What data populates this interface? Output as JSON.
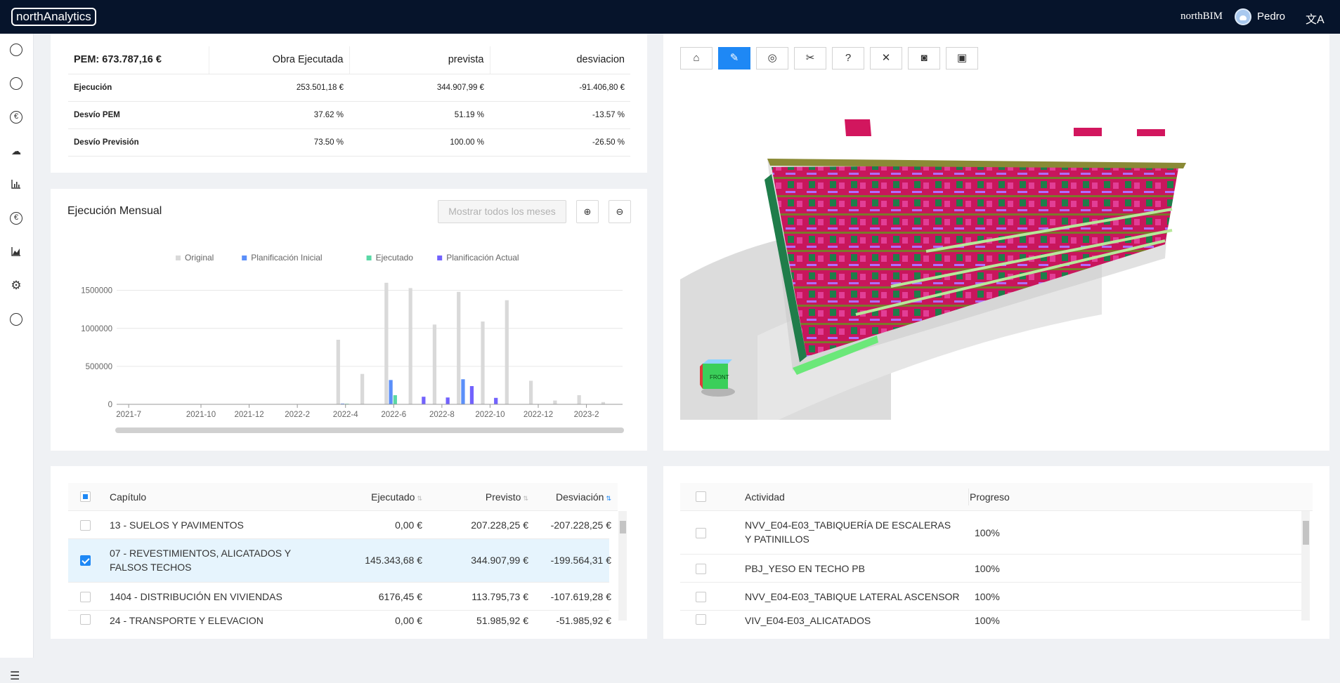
{
  "app": {
    "logo": "northAnalytics",
    "brand": "northBIM",
    "user": "Pedro",
    "lang_icon": "文A"
  },
  "sidebar": {
    "icons": [
      "pie-chart-icon",
      "pie-chart-icon",
      "euro-icon",
      "cloud-icon",
      "bar-chart-icon",
      "euro-icon",
      "area-chart-icon",
      "gear-icon",
      "dashboard-icon"
    ],
    "menu_glyph": "☰"
  },
  "pem": {
    "headers": [
      "PEM: 673.787,16 €",
      "Obra Ejecutada",
      "prevista",
      "desviacion"
    ],
    "rows": [
      {
        "label": "Ejecución",
        "values": [
          "253.501,18 €",
          "344.907,99 €",
          "-91.406,80 €"
        ]
      },
      {
        "label": "Desvío PEM",
        "values": [
          "37.62 %",
          "51.19 %",
          "-13.57 %"
        ]
      },
      {
        "label": "Desvío Previsión",
        "values": [
          "73.50 %",
          "100.00 %",
          "-26.50 %"
        ]
      }
    ]
  },
  "monthly": {
    "title": "Ejecución Mensual",
    "show_all": "Mostrar todos los meses",
    "zoom_in": "⊕",
    "zoom_out": "⊖"
  },
  "chart_data": {
    "type": "bar",
    "categories": [
      "2021-7",
      "2021-8",
      "2021-9",
      "2021-10",
      "2021-11",
      "2021-12",
      "2022-1",
      "2022-2",
      "2022-3",
      "2022-4",
      "2022-5",
      "2022-6",
      "2022-7",
      "2022-8",
      "2022-9",
      "2022-10",
      "2022-11",
      "2022-12",
      "2023-1",
      "2023-2",
      "2023-3"
    ],
    "tick_labels": [
      "2021-7",
      "2021-10",
      "2021-12",
      "2022-2",
      "2022-4",
      "2022-6",
      "2022-8",
      "2022-10",
      "2022-12",
      "2023-2"
    ],
    "series": [
      {
        "name": "Original",
        "color": "#d9d9d9",
        "values": [
          0,
          0,
          0,
          0,
          0,
          0,
          0,
          0,
          0,
          850000,
          400000,
          1600000,
          1530000,
          1050000,
          1480000,
          1090000,
          1370000,
          310000,
          50000,
          120000,
          30000
        ]
      },
      {
        "name": "Planificación Inicial",
        "color": "#5b8ff9",
        "values": [
          0,
          0,
          0,
          0,
          0,
          0,
          0,
          0,
          0,
          10000,
          0,
          320000,
          0,
          0,
          330000,
          0,
          0,
          0,
          0,
          0,
          0
        ]
      },
      {
        "name": "Ejecutado",
        "color": "#5ad8a6",
        "values": [
          0,
          0,
          0,
          0,
          0,
          0,
          0,
          0,
          0,
          8000,
          0,
          120000,
          0,
          0,
          0,
          0,
          0,
          0,
          0,
          0,
          0
        ]
      },
      {
        "name": "Planificación Actual",
        "color": "#7262fd",
        "values": [
          0,
          0,
          0,
          0,
          0,
          0,
          0,
          0,
          0,
          0,
          0,
          0,
          100000,
          90000,
          240000,
          85000,
          0,
          0,
          0,
          0,
          0
        ]
      }
    ],
    "y_ticks": [
      "0",
      "500000",
      "1000000",
      "1500000"
    ],
    "ylim": [
      0,
      1700000
    ],
    "grid": true,
    "legend": "top"
  },
  "viewer": {
    "buttons": [
      {
        "name": "home-icon",
        "glyph": "⌂"
      },
      {
        "name": "select-icon",
        "glyph": "✎"
      },
      {
        "name": "hide-icon",
        "glyph": "◎"
      },
      {
        "name": "scissors-icon",
        "glyph": "✂"
      },
      {
        "name": "help-icon",
        "glyph": "?"
      },
      {
        "name": "close-icon",
        "glyph": "✕"
      },
      {
        "name": "camera-icon",
        "glyph": "◙"
      },
      {
        "name": "save-icon",
        "glyph": "▣"
      }
    ],
    "cube_label": "FRONT"
  },
  "chapters": {
    "columns": [
      "Capítulo",
      "Ejecutado",
      "Previsto",
      "Desviación"
    ],
    "rows": [
      {
        "name": "13 - SUELOS Y PAVIMENTOS",
        "ejecutado": "0,00 €",
        "previsto": "207.228,25 €",
        "desviacion": "-207.228,25 €",
        "checked": false
      },
      {
        "name": "07 - REVESTIMIENTOS, ALICATADOS Y FALSOS TECHOS",
        "ejecutado": "145.343,68 €",
        "previsto": "344.907,99 €",
        "desviacion": "-199.564,31 €",
        "checked": true
      },
      {
        "name": "1404 - DISTRIBUCIÓN EN VIVIENDAS",
        "ejecutado": "6176,45 €",
        "previsto": "113.795,73 €",
        "desviacion": "-107.619,28 €",
        "checked": false
      },
      {
        "name": "24 - TRANSPORTE Y ELEVACION",
        "ejecutado": "0,00 €",
        "previsto": "51.985,92 €",
        "desviacion": "-51.985,92 €",
        "checked": false
      }
    ]
  },
  "activities": {
    "columns": [
      "Actividad",
      "Progreso"
    ],
    "rows": [
      {
        "name": "NVV_E04-E03_TABIQUERÍA DE ESCALERAS Y PATINILLOS",
        "progress": "100%"
      },
      {
        "name": "PBJ_YESO EN TECHO PB",
        "progress": "100%"
      },
      {
        "name": "NVV_E04-E03_TABIQUE LATERAL ASCENSOR",
        "progress": "100%"
      },
      {
        "name": "VIV_E04-E03_ALICATADOS",
        "progress": "100%"
      }
    ]
  }
}
